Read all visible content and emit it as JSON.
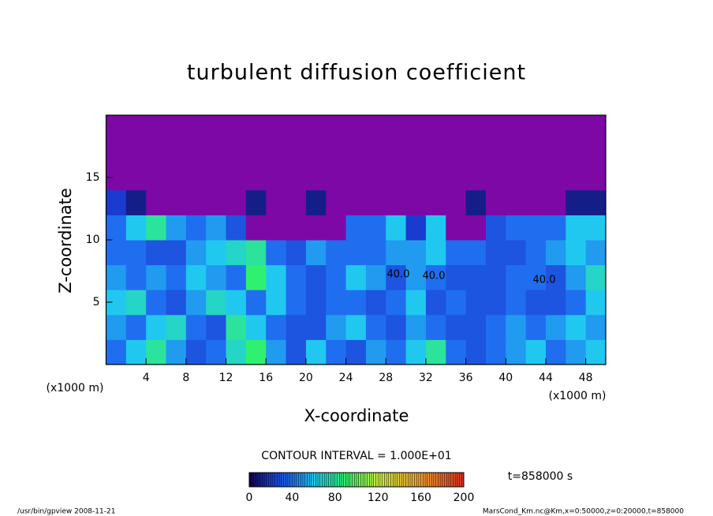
{
  "chart_data": {
    "type": "contour",
    "title": "turbulent diffusion coefficient",
    "x_label": "X-coordinate",
    "y_label": "Z-coordinate",
    "x_unit": "(x1000 m)",
    "y_unit": "(x1000 m)",
    "xlim": [
      0,
      50
    ],
    "ylim": [
      0,
      20
    ],
    "xticks": [
      4,
      8,
      12,
      16,
      20,
      24,
      28,
      32,
      36,
      40,
      44,
      48
    ],
    "yticks": [
      5,
      10,
      15
    ],
    "x_edges": [
      0,
      2,
      4,
      6,
      8,
      10,
      12,
      14,
      16,
      18,
      20,
      22,
      24,
      26,
      28,
      30,
      32,
      34,
      36,
      38,
      40,
      42,
      44,
      46,
      48,
      50
    ],
    "z_edges": [
      0,
      2,
      4,
      6,
      8,
      10,
      12,
      14,
      16,
      18,
      20
    ],
    "z": [
      [
        40,
        60,
        80,
        50,
        30,
        40,
        70,
        90,
        50,
        30,
        60,
        40,
        30,
        50,
        40,
        60,
        80,
        40,
        30,
        40,
        50,
        60,
        40,
        50,
        60
      ],
      [
        50,
        40,
        60,
        70,
        40,
        30,
        80,
        60,
        40,
        30,
        30,
        50,
        60,
        40,
        30,
        50,
        40,
        30,
        30,
        40,
        50,
        40,
        50,
        60,
        50
      ],
      [
        60,
        70,
        40,
        30,
        50,
        70,
        60,
        40,
        60,
        40,
        30,
        40,
        40,
        30,
        40,
        60,
        30,
        40,
        30,
        30,
        40,
        30,
        30,
        40,
        60
      ],
      [
        50,
        40,
        50,
        40,
        60,
        50,
        40,
        90,
        60,
        40,
        30,
        40,
        60,
        50,
        30,
        50,
        40,
        30,
        30,
        30,
        40,
        40,
        30,
        50,
        70
      ],
      [
        40,
        40,
        30,
        30,
        50,
        60,
        70,
        80,
        40,
        30,
        50,
        40,
        40,
        40,
        50,
        50,
        60,
        40,
        40,
        30,
        30,
        40,
        50,
        60,
        50
      ],
      [
        40,
        60,
        80,
        50,
        40,
        50,
        30,
        0,
        0,
        0,
        0,
        0,
        40,
        40,
        60,
        20,
        60,
        0,
        0,
        30,
        40,
        40,
        40,
        60,
        60
      ],
      [
        20,
        10,
        0,
        0,
        0,
        0,
        0,
        10,
        0,
        0,
        10,
        0,
        0,
        0,
        0,
        0,
        0,
        0,
        10,
        0,
        0,
        0,
        0,
        10,
        10
      ],
      [
        0,
        0,
        0,
        0,
        0,
        0,
        0,
        0,
        0,
        0,
        0,
        0,
        0,
        0,
        0,
        0,
        0,
        0,
        0,
        0,
        0,
        0,
        0,
        0,
        0
      ],
      [
        0,
        0,
        0,
        0,
        0,
        0,
        0,
        0,
        0,
        0,
        0,
        0,
        0,
        0,
        0,
        0,
        0,
        0,
        0,
        0,
        0,
        0,
        0,
        0,
        0
      ],
      [
        0,
        0,
        0,
        0,
        0,
        0,
        0,
        0,
        0,
        0,
        0,
        0,
        0,
        0,
        0,
        0,
        0,
        0,
        0,
        0,
        0,
        0,
        0,
        0,
        0
      ]
    ],
    "contour_labels": [
      "40.0",
      "40.0",
      "40.0"
    ],
    "contour_interval_text": "CONTOUR INTERVAL = 1.000E+01",
    "clim": [
      0,
      200
    ],
    "cticks": [
      0,
      40,
      80,
      120,
      160,
      200
    ],
    "time_text": "t=858000 s",
    "footer_left": "/usr/bin/gpview  2008-11-21",
    "footer_right": "MarsCond_Km.nc@Km,x=0:50000,z=0:20000,t=858000"
  }
}
